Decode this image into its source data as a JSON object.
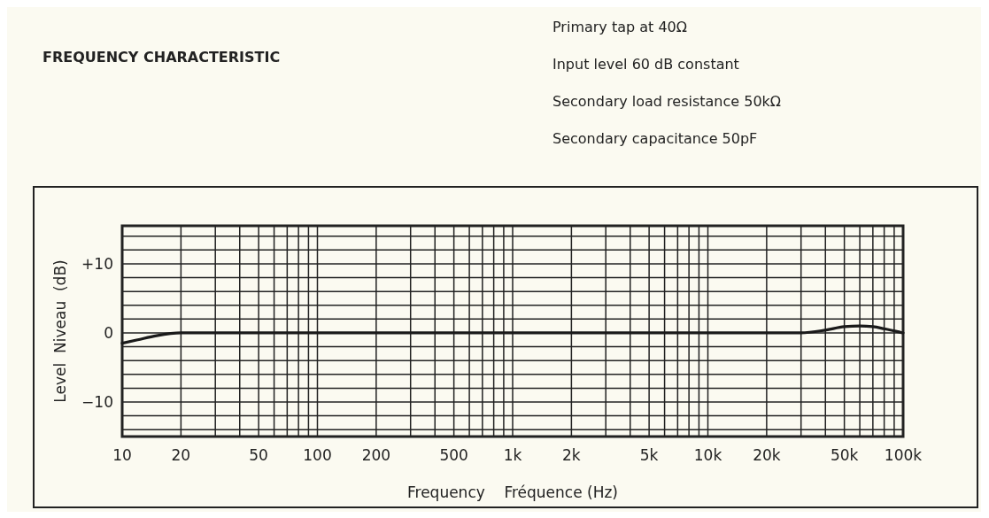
{
  "chart_data": {
    "type": "line",
    "title": "FREQUENCY CHARACTERISTIC",
    "annotations": [
      "Primary tap at 40Ω",
      "Input level 60 dB constant",
      "Secondary load resistance 50kΩ",
      "Secondary capacitance 50pF"
    ],
    "xlabel": "Frequency    Fréquence (Hz)",
    "ylabel": "Level  Niveau  (dB)",
    "log": "x",
    "xlim": [
      10,
      100000
    ],
    "ylim": [
      -15,
      15.5
    ],
    "xticks": [
      10,
      20,
      {
        "value": 30,
        "label": null
      },
      {
        "value": 40,
        "label": null
      },
      50,
      {
        "value": 60,
        "label": null
      },
      {
        "value": 70,
        "label": null
      },
      {
        "value": 80,
        "label": null
      },
      {
        "value": 90,
        "label": null
      },
      100,
      200,
      {
        "value": 300,
        "label": null
      },
      {
        "value": 400,
        "label": null
      },
      500,
      {
        "value": 600,
        "label": null
      },
      {
        "value": 700,
        "label": null
      },
      {
        "value": 800,
        "label": null
      },
      {
        "value": 900,
        "label": null
      },
      {
        "value": 1000,
        "label": "1k"
      },
      {
        "value": 2000,
        "label": "2k"
      },
      {
        "value": 3000,
        "label": null
      },
      {
        "value": 4000,
        "label": null
      },
      {
        "value": 5000,
        "label": "5k"
      },
      {
        "value": 6000,
        "label": null
      },
      {
        "value": 7000,
        "label": null
      },
      {
        "value": 8000,
        "label": null
      },
      {
        "value": 9000,
        "label": null
      },
      {
        "value": 10000,
        "label": "10k"
      },
      {
        "value": 20000,
        "label": "20k"
      },
      {
        "value": 30000,
        "label": null
      },
      {
        "value": 40000,
        "label": null
      },
      {
        "value": 50000,
        "label": "50k"
      },
      {
        "value": 60000,
        "label": null
      },
      {
        "value": 70000,
        "label": null
      },
      {
        "value": 80000,
        "label": null
      },
      {
        "value": 90000,
        "label": null
      },
      {
        "value": 100000,
        "label": "100k"
      }
    ],
    "yticks": [
      {
        "value": -14,
        "label": null
      },
      {
        "value": -12,
        "label": null
      },
      {
        "value": -10,
        "label": "−10"
      },
      {
        "value": -8,
        "label": null
      },
      {
        "value": -6,
        "label": null
      },
      {
        "value": -4,
        "label": null
      },
      {
        "value": -2,
        "label": null
      },
      0,
      {
        "value": 2,
        "label": null
      },
      {
        "value": 4,
        "label": null
      },
      {
        "value": 6,
        "label": null
      },
      {
        "value": 8,
        "label": null
      },
      {
        "value": 10,
        "label": "+10"
      },
      {
        "value": 12,
        "label": null
      },
      {
        "value": 14,
        "label": null
      }
    ],
    "grid": true,
    "series": [
      {
        "color": "#1a1a1a",
        "x": [
          10,
          12,
          15,
          20,
          50,
          100,
          1000,
          10000,
          30000,
          40000,
          50000,
          60000,
          70000,
          80000,
          100000
        ],
        "values": [
          -1.5,
          -1,
          -0.4,
          0,
          0,
          0,
          0,
          0,
          0,
          0.4,
          0.9,
          1,
          0.9,
          0.6,
          0
        ]
      }
    ]
  }
}
